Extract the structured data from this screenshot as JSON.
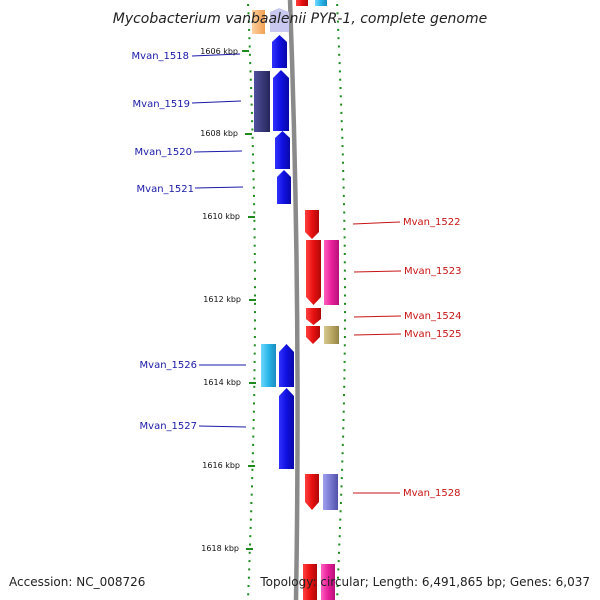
{
  "title": "Mycobacterium vanbaalenii PYR-1, complete genome",
  "footer": {
    "accession": "Accession: NC_008726",
    "topology": "Topology: circular; Length: 6,491,865 bp; Genes: 6,037"
  },
  "scale_labels": [
    "1606 kbp",
    "1608 kbp",
    "1610 kbp",
    "1612 kbp",
    "1614 kbp",
    "1616 kbp",
    "1618 kbp"
  ],
  "genes_left": [
    "Mvan_1518",
    "Mvan_1519",
    "Mvan_1520",
    "Mvan_1521",
    "Mvan_1526",
    "Mvan_1527"
  ],
  "genes_right": [
    "Mvan_1522",
    "Mvan_1523",
    "Mvan_1524",
    "Mvan_1525",
    "Mvan_1528"
  ],
  "colors": {
    "forward_gene": "#1010e8",
    "reverse_gene": "#e81010",
    "slate_gene": "#3a3a7a",
    "cyan_gene": "#29b6e8",
    "magenta_gene": "#e8209a",
    "olive_gene": "#bba866",
    "lavender_gene": "#7878d0",
    "backbone": "#8a8a8a",
    "tick": "#1d8a1d"
  }
}
